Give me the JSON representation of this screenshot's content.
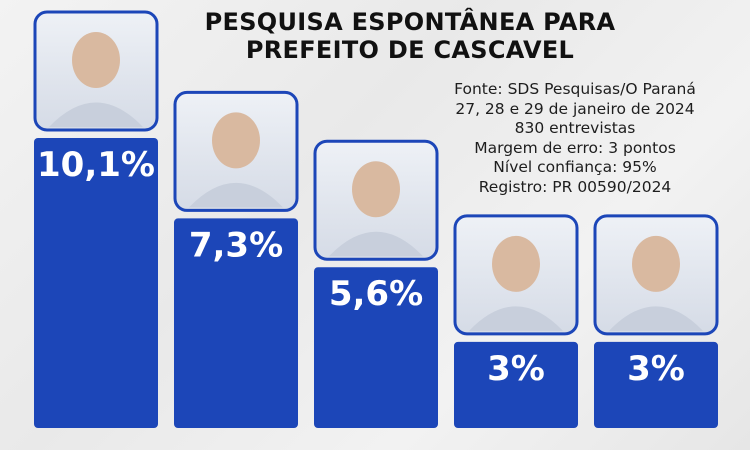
{
  "header": {
    "title_line1": "PESQUISA ESPONTÂNEA PARA",
    "title_line2": "PREFEITO DE CASCAVEL"
  },
  "info": {
    "source": "Fonte: SDS Pesquisas/O Paraná",
    "dates": "27, 28 e 29 de janeiro de 2024",
    "sample": "830 entrevistas",
    "margin": "Margem de erro: 3 pontos",
    "confidence": "Nível confiança: 95%",
    "registry": "Registro: PR 00590/2024"
  },
  "colors": {
    "bar": "#1c46b8",
    "photo_frame": "#1c46b8",
    "label": "#ffffff"
  },
  "chart_data": {
    "type": "bar",
    "categories": [
      "",
      "",
      "",
      "",
      ""
    ],
    "values": [
      10.1,
      7.3,
      5.6,
      3,
      3
    ],
    "value_labels": [
      "10,1%",
      "7,3%",
      "5,6%",
      "3%",
      "3%"
    ],
    "ylim": [
      0,
      10.1
    ],
    "grid": false,
    "candidate_photos": [
      "candidate-photo-1",
      "candidate-photo-2",
      "candidate-photo-3",
      "candidate-photo-4",
      "candidate-photo-5"
    ]
  }
}
